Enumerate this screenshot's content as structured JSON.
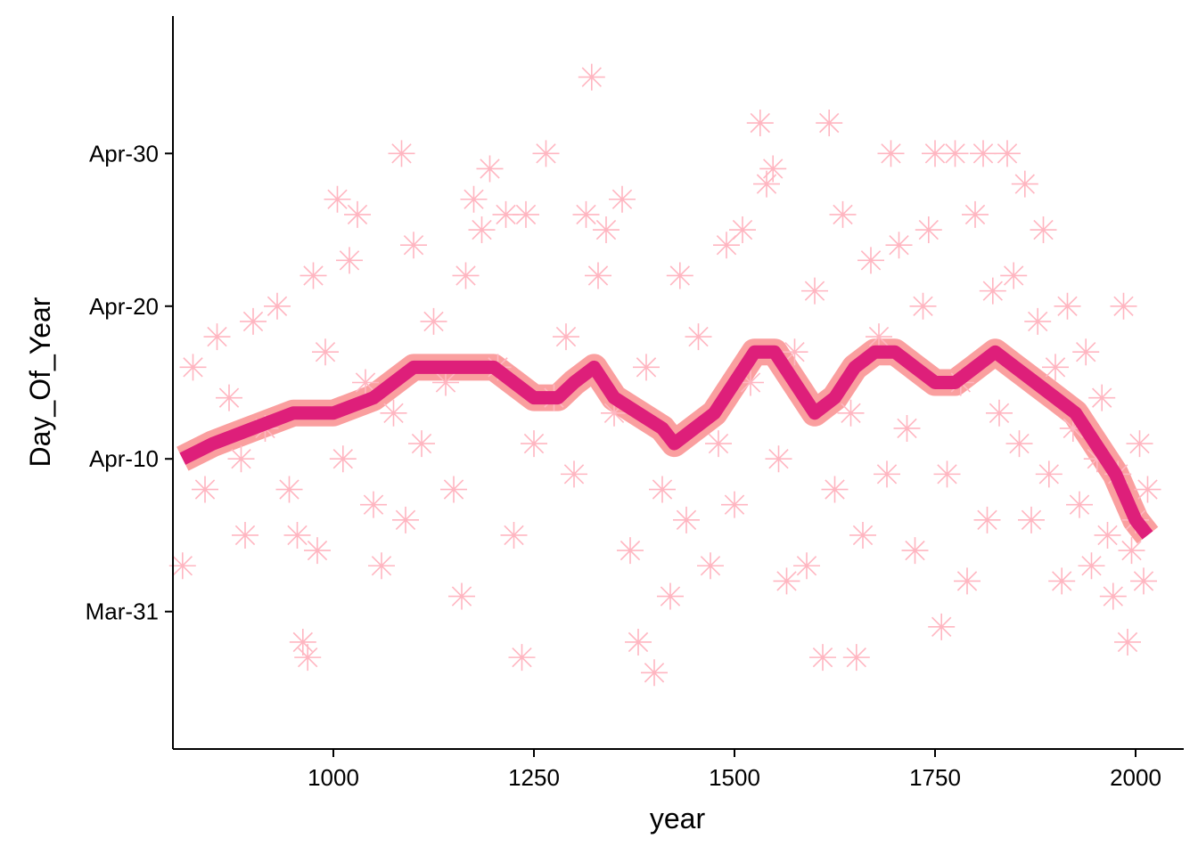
{
  "chart_data": {
    "type": "scatter",
    "xlabel": "year",
    "ylabel": "Day_Of_Year",
    "xlim": [
      800,
      2060
    ],
    "ylim": [
      "2000-03-22",
      "2000-05-09"
    ],
    "x_ticks": [
      1000,
      1250,
      1500,
      1750,
      2000
    ],
    "y_ticks": [
      {
        "date": "2000-03-31",
        "label": "Mar-31"
      },
      {
        "date": "2000-04-10",
        "label": "Apr-10"
      },
      {
        "date": "2000-04-20",
        "label": "Apr-20"
      },
      {
        "date": "2000-04-30",
        "label": "Apr-30"
      }
    ],
    "grid": false,
    "legend": "none",
    "point_shape": "asterisk",
    "colors": {
      "points": "#FFB6C1",
      "smooth_line": "#DE1F7A",
      "confidence_band": "#F87F7F"
    },
    "series": [
      {
        "type": "scatter",
        "points": [
          [
            812,
            "2000-04-03"
          ],
          [
            825,
            "2000-04-16"
          ],
          [
            840,
            "2000-04-08"
          ],
          [
            855,
            "2000-04-18"
          ],
          [
            870,
            "2000-04-14"
          ],
          [
            885,
            "2000-04-10"
          ],
          [
            890,
            "2000-04-05"
          ],
          [
            900,
            "2000-04-19"
          ],
          [
            915,
            "2000-04-12"
          ],
          [
            930,
            "2000-04-20"
          ],
          [
            945,
            "2000-04-08"
          ],
          [
            955,
            "2000-04-05"
          ],
          [
            962,
            "2000-03-29"
          ],
          [
            968,
            "2000-03-28"
          ],
          [
            975,
            "2000-04-22"
          ],
          [
            980,
            "2000-04-04"
          ],
          [
            990,
            "2000-04-17"
          ],
          [
            1005,
            "2000-04-27"
          ],
          [
            1012,
            "2000-04-10"
          ],
          [
            1020,
            "2000-04-23"
          ],
          [
            1030,
            "2000-04-26"
          ],
          [
            1040,
            "2000-04-15"
          ],
          [
            1050,
            "2000-04-07"
          ],
          [
            1060,
            "2000-04-03"
          ],
          [
            1075,
            "2000-04-13"
          ],
          [
            1085,
            "2000-04-30"
          ],
          [
            1090,
            "2000-04-06"
          ],
          [
            1100,
            "2000-04-24"
          ],
          [
            1110,
            "2000-04-11"
          ],
          [
            1125,
            "2000-04-19"
          ],
          [
            1140,
            "2000-04-15"
          ],
          [
            1150,
            "2000-04-08"
          ],
          [
            1160,
            "2000-04-01"
          ],
          [
            1165,
            "2000-04-22"
          ],
          [
            1175,
            "2000-04-27"
          ],
          [
            1185,
            "2000-04-25"
          ],
          [
            1195,
            "2000-04-29"
          ],
          [
            1205,
            "2000-04-16"
          ],
          [
            1215,
            "2000-04-26"
          ],
          [
            1225,
            "2000-04-05"
          ],
          [
            1235,
            "2000-03-28"
          ],
          [
            1240,
            "2000-04-26"
          ],
          [
            1250,
            "2000-04-11"
          ],
          [
            1265,
            "2000-04-30"
          ],
          [
            1275,
            "2000-04-14"
          ],
          [
            1290,
            "2000-04-18"
          ],
          [
            1300,
            "2000-04-09"
          ],
          [
            1315,
            "2000-04-26"
          ],
          [
            1322,
            "2000-05-05"
          ],
          [
            1330,
            "2000-04-22"
          ],
          [
            1340,
            "2000-04-25"
          ],
          [
            1350,
            "2000-04-13"
          ],
          [
            1360,
            "2000-04-27"
          ],
          [
            1370,
            "2000-04-04"
          ],
          [
            1380,
            "2000-03-29"
          ],
          [
            1390,
            "2000-04-16"
          ],
          [
            1400,
            "2000-03-27"
          ],
          [
            1410,
            "2000-04-08"
          ],
          [
            1420,
            "2000-04-01"
          ],
          [
            1432,
            "2000-04-22"
          ],
          [
            1440,
            "2000-04-06"
          ],
          [
            1455,
            "2000-04-18"
          ],
          [
            1470,
            "2000-04-03"
          ],
          [
            1480,
            "2000-04-11"
          ],
          [
            1490,
            "2000-04-24"
          ],
          [
            1500,
            "2000-04-07"
          ],
          [
            1510,
            "2000-04-25"
          ],
          [
            1520,
            "2000-04-15"
          ],
          [
            1532,
            "2000-05-02"
          ],
          [
            1540,
            "2000-04-28"
          ],
          [
            1548,
            "2000-04-29"
          ],
          [
            1555,
            "2000-04-10"
          ],
          [
            1565,
            "2000-04-02"
          ],
          [
            1575,
            "2000-04-17"
          ],
          [
            1590,
            "2000-04-03"
          ],
          [
            1600,
            "2000-04-21"
          ],
          [
            1610,
            "2000-03-28"
          ],
          [
            1618,
            "2000-05-02"
          ],
          [
            1625,
            "2000-04-08"
          ],
          [
            1635,
            "2000-04-26"
          ],
          [
            1645,
            "2000-04-13"
          ],
          [
            1652,
            "2000-03-28"
          ],
          [
            1660,
            "2000-04-05"
          ],
          [
            1670,
            "2000-04-23"
          ],
          [
            1680,
            "2000-04-18"
          ],
          [
            1690,
            "2000-04-09"
          ],
          [
            1695,
            "2000-04-30"
          ],
          [
            1705,
            "2000-04-24"
          ],
          [
            1715,
            "2000-04-12"
          ],
          [
            1725,
            "2000-04-04"
          ],
          [
            1735,
            "2000-04-20"
          ],
          [
            1742,
            "2000-04-25"
          ],
          [
            1750,
            "2000-04-30"
          ],
          [
            1758,
            "2000-03-30"
          ],
          [
            1765,
            "2000-04-09"
          ],
          [
            1775,
            "2000-04-30"
          ],
          [
            1782,
            "2000-04-15"
          ],
          [
            1790,
            "2000-04-02"
          ],
          [
            1800,
            "2000-04-26"
          ],
          [
            1810,
            "2000-04-30"
          ],
          [
            1815,
            "2000-04-06"
          ],
          [
            1822,
            "2000-04-21"
          ],
          [
            1830,
            "2000-04-13"
          ],
          [
            1840,
            "2000-04-30"
          ],
          [
            1848,
            "2000-04-22"
          ],
          [
            1855,
            "2000-04-11"
          ],
          [
            1862,
            "2000-04-28"
          ],
          [
            1870,
            "2000-04-06"
          ],
          [
            1878,
            "2000-04-19"
          ],
          [
            1885,
            "2000-04-25"
          ],
          [
            1892,
            "2000-04-09"
          ],
          [
            1900,
            "2000-04-16"
          ],
          [
            1908,
            "2000-04-02"
          ],
          [
            1915,
            "2000-04-20"
          ],
          [
            1922,
            "2000-04-12"
          ],
          [
            1930,
            "2000-04-07"
          ],
          [
            1938,
            "2000-04-17"
          ],
          [
            1945,
            "2000-04-03"
          ],
          [
            1952,
            "2000-04-10"
          ],
          [
            1958,
            "2000-04-14"
          ],
          [
            1965,
            "2000-04-05"
          ],
          [
            1972,
            "2000-04-01"
          ],
          [
            1978,
            "2000-04-09"
          ],
          [
            1985,
            "2000-04-20"
          ],
          [
            1990,
            "2000-03-29"
          ],
          [
            1995,
            "2000-04-04"
          ],
          [
            2000,
            "2000-04-06"
          ],
          [
            2005,
            "2000-04-11"
          ],
          [
            2010,
            "2000-04-02"
          ],
          [
            2015,
            "2000-04-08"
          ]
        ]
      },
      {
        "type": "line",
        "smooth": true,
        "points": [
          [
            812,
            "2000-04-10"
          ],
          [
            850,
            "2000-04-11"
          ],
          [
            900,
            "2000-04-12"
          ],
          [
            950,
            "2000-04-13"
          ],
          [
            1000,
            "2000-04-13"
          ],
          [
            1050,
            "2000-04-14"
          ],
          [
            1100,
            "2000-04-16"
          ],
          [
            1150,
            "2000-04-16"
          ],
          [
            1200,
            "2000-04-16"
          ],
          [
            1225,
            "2000-04-15"
          ],
          [
            1250,
            "2000-04-14"
          ],
          [
            1280,
            "2000-04-14"
          ],
          [
            1300,
            "2000-04-15"
          ],
          [
            1325,
            "2000-04-16"
          ],
          [
            1350,
            "2000-04-14"
          ],
          [
            1380,
            "2000-04-13"
          ],
          [
            1410,
            "2000-04-12"
          ],
          [
            1425,
            "2000-04-11"
          ],
          [
            1450,
            "2000-04-12"
          ],
          [
            1475,
            "2000-04-13"
          ],
          [
            1500,
            "2000-04-15"
          ],
          [
            1525,
            "2000-04-17"
          ],
          [
            1550,
            "2000-04-17"
          ],
          [
            1575,
            "2000-04-15"
          ],
          [
            1600,
            "2000-04-13"
          ],
          [
            1625,
            "2000-04-14"
          ],
          [
            1650,
            "2000-04-16"
          ],
          [
            1675,
            "2000-04-17"
          ],
          [
            1700,
            "2000-04-17"
          ],
          [
            1725,
            "2000-04-16"
          ],
          [
            1750,
            "2000-04-15"
          ],
          [
            1775,
            "2000-04-15"
          ],
          [
            1800,
            "2000-04-16"
          ],
          [
            1825,
            "2000-04-17"
          ],
          [
            1850,
            "2000-04-16"
          ],
          [
            1875,
            "2000-04-15"
          ],
          [
            1900,
            "2000-04-14"
          ],
          [
            1925,
            "2000-04-13"
          ],
          [
            1950,
            "2000-04-11"
          ],
          [
            1975,
            "2000-04-09"
          ],
          [
            2000,
            "2000-04-06"
          ],
          [
            2015,
            "2000-04-05"
          ]
        ]
      }
    ]
  }
}
